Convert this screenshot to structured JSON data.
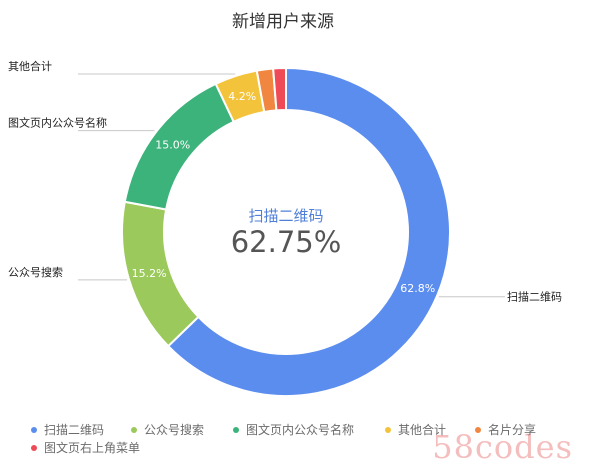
{
  "chart_data": {
    "type": "pie",
    "title": "新增用户来源",
    "center_label": "扫描二维码",
    "center_value": "62.75%",
    "slices": [
      {
        "name": "扫描二维码",
        "value": 62.75,
        "label": "62.8%",
        "color": "#5b8def"
      },
      {
        "name": "公众号搜索",
        "value": 15.2,
        "label": "15.2%",
        "color": "#9bc95b"
      },
      {
        "name": "图文页内公众号名称",
        "value": 15.0,
        "label": "15.0%",
        "color": "#3bb37a"
      },
      {
        "name": "其他合计",
        "value": 4.2,
        "label": "4.2%",
        "color": "#f4c33c"
      },
      {
        "name": "名片分享",
        "value": 1.6,
        "label": "",
        "color": "#f08640"
      },
      {
        "name": "图文页右上角菜单",
        "value": 1.25,
        "label": "",
        "color": "#ef4b57"
      }
    ],
    "callouts": [
      {
        "slice": "其他合计",
        "text": "其他合计"
      },
      {
        "slice": "图文页内公众号名称",
        "text": "图文页内公众号名称"
      },
      {
        "slice": "公众号搜索",
        "text": "公众号搜索"
      },
      {
        "slice": "扫描二维码",
        "text": "扫描二维码"
      }
    ],
    "legend": {
      "placement": "bottom",
      "items": [
        "扫描二维码",
        "公众号搜索",
        "图文页内公众号名称",
        "其他合计",
        "名片分享",
        "图文页右上角菜单"
      ]
    }
  },
  "watermark": "58codes"
}
